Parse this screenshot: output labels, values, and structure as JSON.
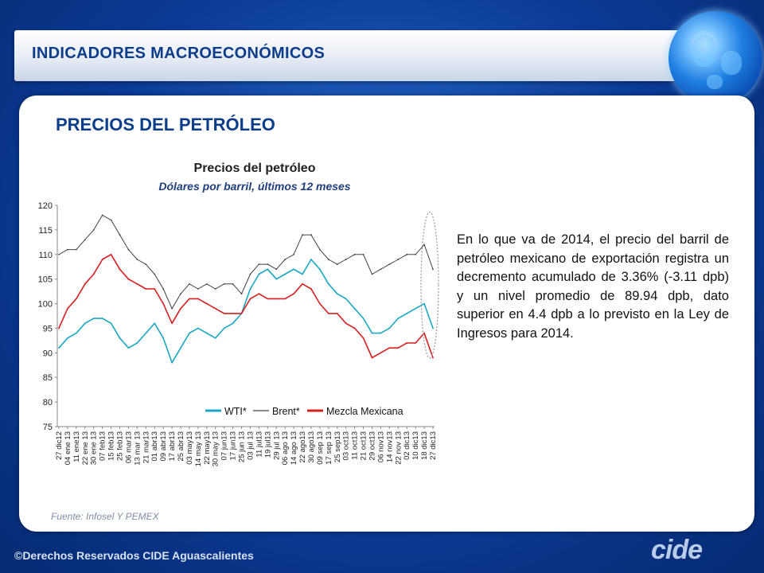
{
  "header": {
    "title": "INDICADORES MACROECONÓMICOS"
  },
  "page": {
    "title": "PRECIOS DEL PETRÓLEO",
    "body_text": "En lo que va de 2014, el precio del barril de petróleo mexicano de exportación registra un decremento acumulado de 3.36% (-3.11 dpb) y un nivel promedio de 89.94 dpb, dato superior en 4.4 dpb a lo previsto en la Ley de Ingresos para 2014.",
    "source": "Fuente: Infosel Y PEMEX"
  },
  "footer": {
    "copyright": "©Derechos Reservados CIDE Aguascalientes",
    "logo_text": "cide"
  },
  "colors": {
    "wti": "#1aa7c4",
    "brent": "#404040",
    "mezcla": "#d81e1e",
    "accent": "#0b3d8a"
  },
  "chart_data": {
    "type": "line",
    "title": "Precios del petróleo",
    "subtitle": "Dólares por barril, últimos 12 meses",
    "ylim": [
      75,
      120
    ],
    "yticks": [
      75,
      80,
      85,
      90,
      95,
      100,
      105,
      110,
      115,
      120
    ],
    "x": [
      "27 dic12",
      "04 ene 13",
      "11 ene13",
      "22 ene 13",
      "30 ene 13",
      "07 feb13",
      "15 feb13",
      "25 feb13",
      "06 mar13",
      "13 mar 13",
      "21 mar13",
      "01 abr13",
      "09 abr13",
      "17 abr13",
      "25 abr13",
      "03 may13",
      "14 may 13",
      "22 may13",
      "30 may 13",
      "07 jun13",
      "17 jun13",
      "25 jun 13",
      "03 jul 13",
      "11 jul13",
      "19 jul13",
      "29 jul 13",
      "06 ago 13",
      "14 ago 13",
      "22 ago13",
      "30 ago13",
      "09 sep 13",
      "17 sep 13",
      "25 sep13",
      "03 oct13",
      "11 oct13",
      "21 oct13",
      "29 oct13",
      "06 nov13",
      "14 nov13",
      "22 nov 13",
      "02 dic13",
      "10 dic13",
      "18 dic13",
      "27 dic13"
    ],
    "legend": {
      "position": "bottom",
      "entries": [
        "WTI*",
        "Brent*",
        "Mezcla Mexicana"
      ]
    },
    "series": [
      {
        "name": "WTI*",
        "values": [
          91,
          93,
          94,
          96,
          97,
          97,
          96,
          93,
          91,
          92,
          94,
          96,
          93,
          88,
          91,
          94,
          95,
          94,
          93,
          95,
          96,
          98,
          103,
          106,
          107,
          105,
          106,
          107,
          106,
          109,
          107,
          104,
          102,
          101,
          99,
          97,
          94,
          94,
          95,
          97,
          98,
          99,
          100,
          95
        ]
      },
      {
        "name": "Brent*",
        "values": [
          110,
          111,
          111,
          113,
          115,
          118,
          117,
          114,
          111,
          109,
          108,
          106,
          103,
          99,
          102,
          104,
          103,
          104,
          103,
          104,
          104,
          102,
          106,
          108,
          108,
          107,
          109,
          110,
          114,
          114,
          111,
          109,
          108,
          109,
          110,
          110,
          106,
          107,
          108,
          109,
          110,
          110,
          112,
          107
        ]
      },
      {
        "name": "Mezcla Mexicana",
        "values": [
          95,
          99,
          101,
          104,
          106,
          109,
          110,
          107,
          105,
          104,
          103,
          103,
          100,
          96,
          99,
          101,
          101,
          100,
          99,
          98,
          98,
          98,
          101,
          102,
          101,
          101,
          101,
          102,
          104,
          103,
          100,
          98,
          98,
          96,
          95,
          93,
          89,
          90,
          91,
          91,
          92,
          92,
          94,
          89
        ]
      }
    ]
  }
}
